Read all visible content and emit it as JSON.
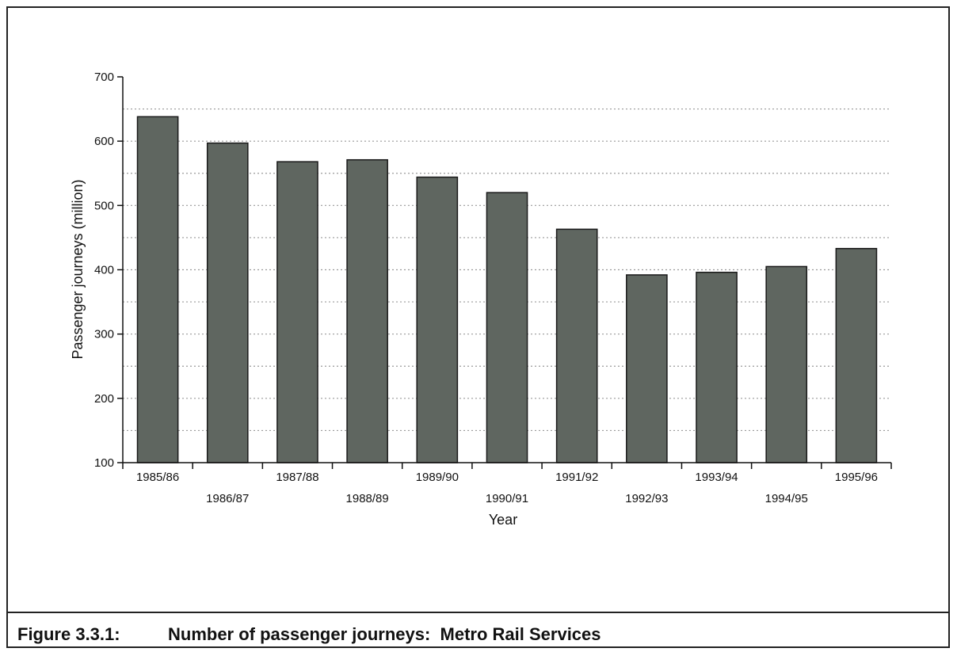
{
  "caption": {
    "number": "Figure 3.3.1:",
    "text": "Number of passenger journeys:  Metro Rail Services"
  },
  "chart_data": {
    "type": "bar",
    "title": "",
    "xlabel": "Year",
    "ylabel": "Passenger journeys (million)",
    "ylim": [
      100,
      700
    ],
    "yticks": [
      100,
      200,
      300,
      400,
      500,
      600,
      700
    ],
    "grid": true,
    "categories": [
      "1985/86",
      "1986/87",
      "1987/88",
      "1988/89",
      "1989/90",
      "1990/91",
      "1991/92",
      "1992/93",
      "1993/94",
      "1994/95",
      "1995/96"
    ],
    "values": [
      638,
      597,
      568,
      571,
      544,
      520,
      463,
      392,
      396,
      405,
      433
    ],
    "bar_color": "#5f6660"
  }
}
